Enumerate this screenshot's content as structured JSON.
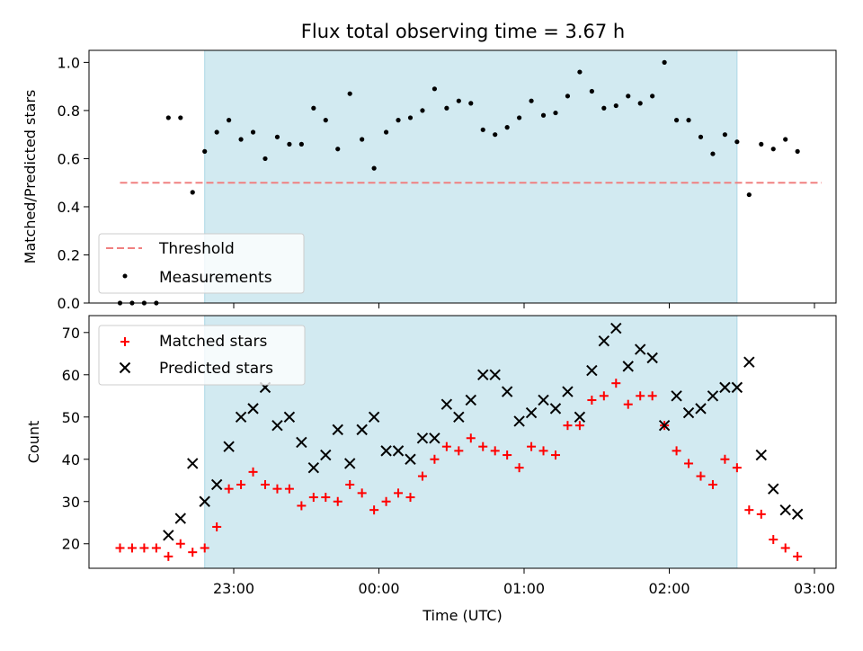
{
  "chart_data": {
    "type": "scatter",
    "title": "Flux total observing time = 3.67 h",
    "xlabel": "Time (UTC)",
    "x_ticks": [
      "23:00",
      "00:00",
      "01:00",
      "02:00",
      "03:00"
    ],
    "observing_span": [
      "22:48",
      "02:28"
    ],
    "colors": {
      "span": "#add8e6",
      "threshold": "#f08080",
      "matched": "#ff0000",
      "predicted": "#000000",
      "measurement": "#000000"
    },
    "panels": [
      {
        "ylabel": "Matched/Predicted stars",
        "ylim": [
          0,
          1.05
        ],
        "y_ticks": [
          "0.0",
          "0.2",
          "0.4",
          "0.6",
          "0.8",
          "1.0"
        ],
        "legend_position": "lower left",
        "threshold": {
          "name": "Threshold",
          "value": 0.5,
          "x_range": [
            "22:13",
            "03:03"
          ]
        },
        "measurements": {
          "name": "Measurements",
          "points": [
            [
              "22:13",
              0.0
            ],
            [
              "22:18",
              0.0
            ],
            [
              "22:23",
              0.0
            ],
            [
              "22:28",
              0.0
            ],
            [
              "22:33",
              0.77
            ],
            [
              "22:38",
              0.77
            ],
            [
              "22:43",
              0.46
            ],
            [
              "22:48",
              0.63
            ],
            [
              "22:53",
              0.71
            ],
            [
              "22:58",
              0.76
            ],
            [
              "23:03",
              0.68
            ],
            [
              "23:08",
              0.71
            ],
            [
              "23:13",
              0.6
            ],
            [
              "23:18",
              0.69
            ],
            [
              "23:23",
              0.66
            ],
            [
              "23:28",
              0.66
            ],
            [
              "23:33",
              0.81
            ],
            [
              "23:38",
              0.76
            ],
            [
              "23:43",
              0.64
            ],
            [
              "23:48",
              0.87
            ],
            [
              "23:53",
              0.68
            ],
            [
              "23:58",
              0.56
            ],
            [
              "00:03",
              0.71
            ],
            [
              "00:08",
              0.76
            ],
            [
              "00:13",
              0.77
            ],
            [
              "00:18",
              0.8
            ],
            [
              "00:23",
              0.89
            ],
            [
              "00:28",
              0.81
            ],
            [
              "00:33",
              0.84
            ],
            [
              "00:38",
              0.83
            ],
            [
              "00:43",
              0.72
            ],
            [
              "00:48",
              0.7
            ],
            [
              "00:53",
              0.73
            ],
            [
              "00:58",
              0.77
            ],
            [
              "01:03",
              0.84
            ],
            [
              "01:08",
              0.78
            ],
            [
              "01:13",
              0.79
            ],
            [
              "01:18",
              0.86
            ],
            [
              "01:23",
              0.96
            ],
            [
              "01:28",
              0.88
            ],
            [
              "01:33",
              0.81
            ],
            [
              "01:38",
              0.82
            ],
            [
              "01:43",
              0.86
            ],
            [
              "01:48",
              0.83
            ],
            [
              "01:53",
              0.86
            ],
            [
              "01:58",
              1.0
            ],
            [
              "02:03",
              0.76
            ],
            [
              "02:08",
              0.76
            ],
            [
              "02:13",
              0.69
            ],
            [
              "02:18",
              0.62
            ],
            [
              "02:23",
              0.7
            ],
            [
              "02:28",
              0.67
            ],
            [
              "02:33",
              0.45
            ],
            [
              "02:38",
              0.66
            ],
            [
              "02:43",
              0.64
            ],
            [
              "02:48",
              0.68
            ],
            [
              "02:53",
              0.63
            ]
          ]
        }
      },
      {
        "ylabel": "Count",
        "ylim": [
          14.2,
          74
        ],
        "y_ticks": [
          "20",
          "30",
          "40",
          "50",
          "60",
          "70"
        ],
        "legend_position": "upper left",
        "series": [
          {
            "name": "Matched stars",
            "marker": "+",
            "points": [
              [
                "22:13",
                19
              ],
              [
                "22:18",
                19
              ],
              [
                "22:23",
                19
              ],
              [
                "22:28",
                19
              ],
              [
                "22:33",
                17
              ],
              [
                "22:38",
                20
              ],
              [
                "22:43",
                18
              ],
              [
                "22:48",
                19
              ],
              [
                "22:53",
                24
              ],
              [
                "22:58",
                33
              ],
              [
                "23:03",
                34
              ],
              [
                "23:08",
                37
              ],
              [
                "23:13",
                34
              ],
              [
                "23:18",
                33
              ],
              [
                "23:23",
                33
              ],
              [
                "23:28",
                29
              ],
              [
                "23:33",
                31
              ],
              [
                "23:38",
                31
              ],
              [
                "23:43",
                30
              ],
              [
                "23:48",
                34
              ],
              [
                "23:53",
                32
              ],
              [
                "23:58",
                28
              ],
              [
                "00:03",
                30
              ],
              [
                "00:08",
                32
              ],
              [
                "00:13",
                31
              ],
              [
                "00:18",
                36
              ],
              [
                "00:23",
                40
              ],
              [
                "00:28",
                43
              ],
              [
                "00:33",
                42
              ],
              [
                "00:38",
                45
              ],
              [
                "00:43",
                43
              ],
              [
                "00:48",
                42
              ],
              [
                "00:53",
                41
              ],
              [
                "00:58",
                38
              ],
              [
                "01:03",
                43
              ],
              [
                "01:08",
                42
              ],
              [
                "01:13",
                41
              ],
              [
                "01:18",
                48
              ],
              [
                "01:23",
                48
              ],
              [
                "01:28",
                54
              ],
              [
                "01:33",
                55
              ],
              [
                "01:38",
                58
              ],
              [
                "01:43",
                53
              ],
              [
                "01:48",
                55
              ],
              [
                "01:53",
                55
              ],
              [
                "01:58",
                48
              ],
              [
                "02:03",
                42
              ],
              [
                "02:08",
                39
              ],
              [
                "02:13",
                36
              ],
              [
                "02:18",
                34
              ],
              [
                "02:23",
                40
              ],
              [
                "02:28",
                38
              ],
              [
                "02:33",
                28
              ],
              [
                "02:38",
                27
              ],
              [
                "02:43",
                21
              ],
              [
                "02:48",
                19
              ],
              [
                "02:53",
                17
              ]
            ]
          },
          {
            "name": "Predicted stars",
            "marker": "x",
            "points": [
              [
                "22:33",
                22
              ],
              [
                "22:38",
                26
              ],
              [
                "22:43",
                39
              ],
              [
                "22:48",
                30
              ],
              [
                "22:53",
                34
              ],
              [
                "22:58",
                43
              ],
              [
                "23:03",
                50
              ],
              [
                "23:08",
                52
              ],
              [
                "23:13",
                57
              ],
              [
                "23:18",
                48
              ],
              [
                "23:23",
                50
              ],
              [
                "23:28",
                44
              ],
              [
                "23:33",
                38
              ],
              [
                "23:38",
                41
              ],
              [
                "23:43",
                47
              ],
              [
                "23:48",
                39
              ],
              [
                "23:53",
                47
              ],
              [
                "23:58",
                50
              ],
              [
                "00:03",
                42
              ],
              [
                "00:08",
                42
              ],
              [
                "00:13",
                40
              ],
              [
                "00:18",
                45
              ],
              [
                "00:23",
                45
              ],
              [
                "00:28",
                53
              ],
              [
                "00:33",
                50
              ],
              [
                "00:38",
                54
              ],
              [
                "00:43",
                60
              ],
              [
                "00:48",
                60
              ],
              [
                "00:53",
                56
              ],
              [
                "00:58",
                49
              ],
              [
                "01:03",
                51
              ],
              [
                "01:08",
                54
              ],
              [
                "01:13",
                52
              ],
              [
                "01:18",
                56
              ],
              [
                "01:23",
                50
              ],
              [
                "01:28",
                61
              ],
              [
                "01:33",
                68
              ],
              [
                "01:38",
                71
              ],
              [
                "01:43",
                62
              ],
              [
                "01:48",
                66
              ],
              [
                "01:53",
                64
              ],
              [
                "01:58",
                48
              ],
              [
                "02:03",
                55
              ],
              [
                "02:08",
                51
              ],
              [
                "02:13",
                52
              ],
              [
                "02:18",
                55
              ],
              [
                "02:23",
                57
              ],
              [
                "02:28",
                57
              ],
              [
                "02:33",
                63
              ],
              [
                "02:38",
                41
              ],
              [
                "02:43",
                33
              ],
              [
                "02:48",
                28
              ],
              [
                "02:53",
                27
              ]
            ]
          }
        ]
      }
    ]
  }
}
